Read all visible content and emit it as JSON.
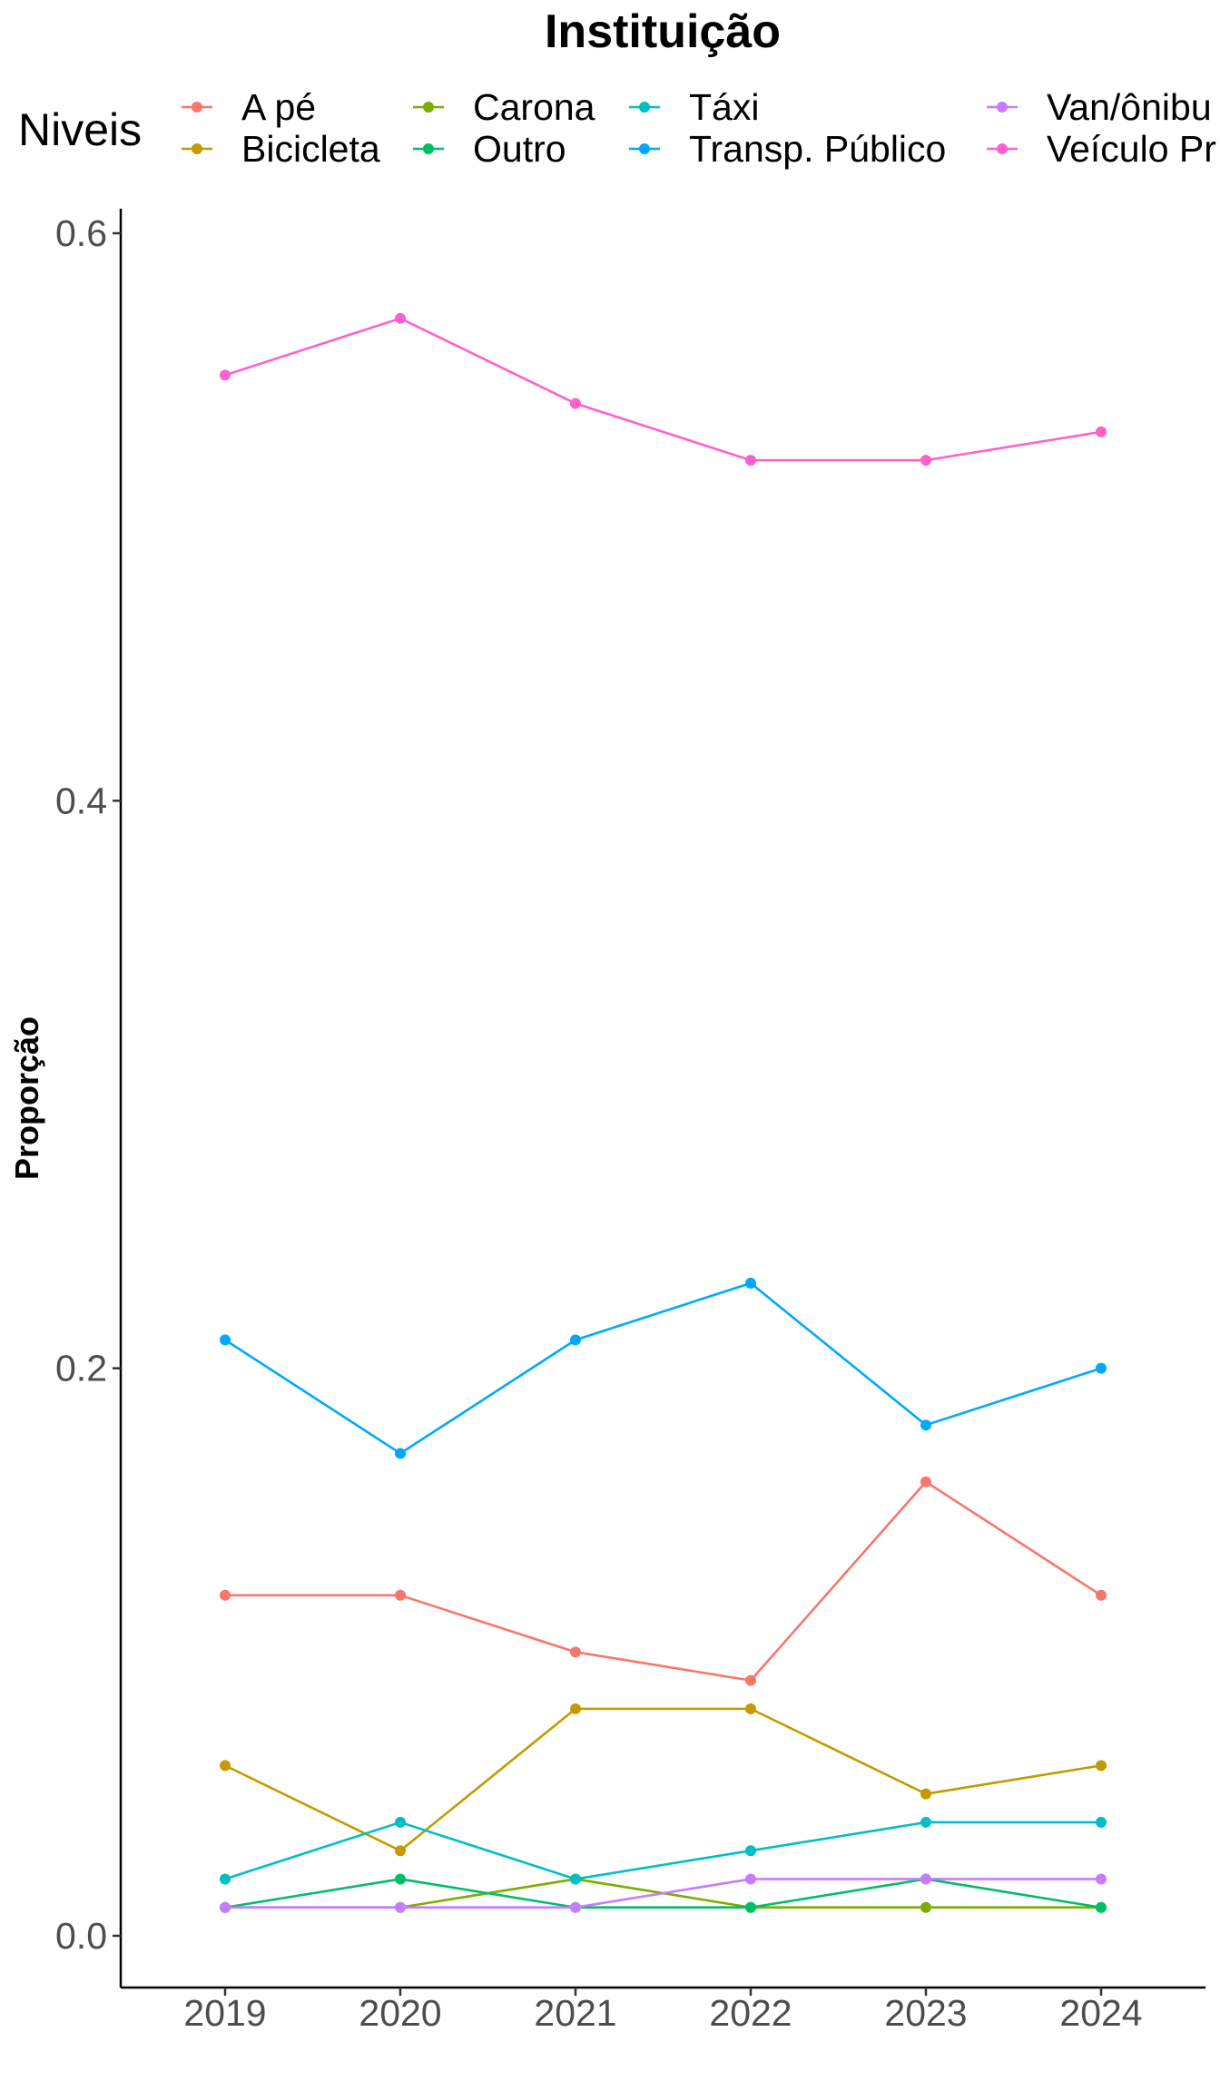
{
  "chart_data": {
    "type": "line",
    "title": "Instituição",
    "xlabel": "",
    "ylabel": "Proporção",
    "legend_title": "Niveis",
    "legend_position": "top",
    "grid": false,
    "x": [
      2019,
      2020,
      2021,
      2022,
      2023,
      2024
    ],
    "x_tick_labels": [
      "2019",
      "2020",
      "2021",
      "2022",
      "2023",
      "2024"
    ],
    "ylim": [
      -0.018,
      0.608
    ],
    "y_ticks": [
      0.0,
      0.2,
      0.4,
      0.6
    ],
    "y_tick_labels": [
      "0.0",
      "0.2",
      "0.4",
      "0.6"
    ],
    "series": [
      {
        "name": "A pé",
        "color": "#F8766D",
        "values": [
          0.12,
          0.12,
          0.1,
          0.09,
          0.16,
          0.12
        ]
      },
      {
        "name": "Bicicleta",
        "color": "#C49A00",
        "values": [
          0.06,
          0.03,
          0.08,
          0.08,
          0.05,
          0.06
        ]
      },
      {
        "name": "Carona",
        "color": "#7CAE00",
        "values": [
          0.01,
          0.01,
          0.02,
          0.01,
          0.01,
          0.01
        ]
      },
      {
        "name": "Outro",
        "color": "#00BE67",
        "values": [
          0.01,
          0.02,
          0.01,
          0.01,
          0.02,
          0.01
        ]
      },
      {
        "name": "Táxi",
        "color": "#00BFC4",
        "values": [
          0.02,
          0.04,
          0.02,
          0.03,
          0.04,
          0.04
        ]
      },
      {
        "name": "Transp. Público",
        "color": "#00A9FF",
        "values": [
          0.21,
          0.17,
          0.21,
          0.23,
          0.18,
          0.2
        ]
      },
      {
        "name": "Van/ônibu",
        "color": "#C77CFF",
        "values": [
          0.01,
          0.01,
          0.01,
          0.02,
          0.02,
          0.02
        ]
      },
      {
        "name": "Veículo Pr",
        "color": "#FF61CC",
        "values": [
          0.55,
          0.57,
          0.54,
          0.52,
          0.52,
          0.53
        ]
      }
    ]
  }
}
